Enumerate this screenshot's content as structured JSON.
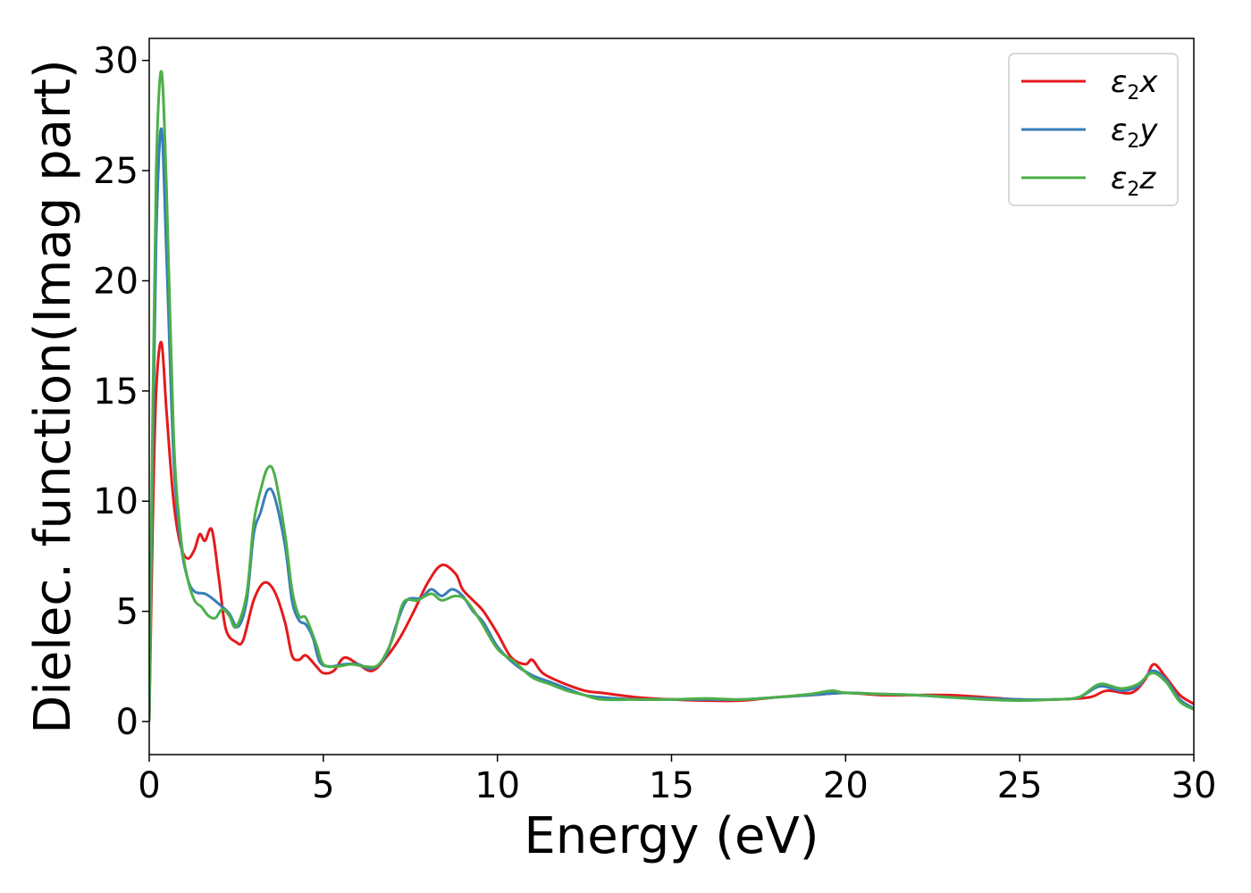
{
  "chart_data": {
    "type": "line",
    "xlabel": "Energy (eV)",
    "ylabel": "Dielec. function(Imag part)",
    "xlim": [
      0,
      30
    ],
    "ylim": [
      -1.5,
      31
    ],
    "xticks": [
      0,
      5,
      10,
      15,
      20,
      25,
      30
    ],
    "yticks": [
      0,
      5,
      10,
      15,
      20,
      25,
      30
    ],
    "xtick_labels": [
      "0",
      "5",
      "10",
      "15",
      "20",
      "25",
      "30"
    ],
    "ytick_labels": [
      "0",
      "5",
      "10",
      "15",
      "20",
      "25",
      "30"
    ],
    "grid": false,
    "legend_position": "top-right",
    "series": [
      {
        "name": "ε2x",
        "legend": {
          "base": "ε",
          "sub": "2",
          "var": "x"
        },
        "color": "#e41a1c",
        "points": [
          [
            0,
            0
          ],
          [
            0.1,
            9
          ],
          [
            0.2,
            15
          ],
          [
            0.35,
            17.2
          ],
          [
            0.5,
            14
          ],
          [
            0.7,
            10
          ],
          [
            0.9,
            8
          ],
          [
            1.1,
            7.4
          ],
          [
            1.3,
            7.8
          ],
          [
            1.45,
            8.5
          ],
          [
            1.6,
            8.2
          ],
          [
            1.8,
            8.7
          ],
          [
            2.0,
            6.5
          ],
          [
            2.2,
            4.2
          ],
          [
            2.5,
            3.6
          ],
          [
            2.7,
            3.7
          ],
          [
            3.0,
            5.5
          ],
          [
            3.3,
            6.3
          ],
          [
            3.6,
            5.9
          ],
          [
            3.9,
            4.5
          ],
          [
            4.1,
            3.0
          ],
          [
            4.3,
            2.8
          ],
          [
            4.5,
            3.0
          ],
          [
            4.8,
            2.5
          ],
          [
            5.0,
            2.2
          ],
          [
            5.3,
            2.3
          ],
          [
            5.6,
            2.9
          ],
          [
            6.0,
            2.6
          ],
          [
            6.4,
            2.3
          ],
          [
            6.8,
            2.9
          ],
          [
            7.2,
            3.8
          ],
          [
            7.6,
            5.0
          ],
          [
            8.0,
            6.3
          ],
          [
            8.4,
            7.1
          ],
          [
            8.8,
            6.7
          ],
          [
            9.0,
            6.0
          ],
          [
            9.3,
            5.5
          ],
          [
            9.6,
            5.0
          ],
          [
            10.0,
            4.0
          ],
          [
            10.4,
            2.9
          ],
          [
            10.8,
            2.6
          ],
          [
            11.0,
            2.8
          ],
          [
            11.3,
            2.2
          ],
          [
            11.8,
            1.8
          ],
          [
            12.5,
            1.4
          ],
          [
            13.0,
            1.3
          ],
          [
            14.0,
            1.1
          ],
          [
            15.0,
            1.0
          ],
          [
            16.0,
            0.95
          ],
          [
            17.0,
            0.95
          ],
          [
            18.0,
            1.1
          ],
          [
            19.0,
            1.2
          ],
          [
            20.0,
            1.3
          ],
          [
            21.0,
            1.2
          ],
          [
            22.0,
            1.2
          ],
          [
            23.0,
            1.2
          ],
          [
            24.0,
            1.1
          ],
          [
            25.0,
            1.0
          ],
          [
            26.0,
            1.0
          ],
          [
            27.0,
            1.1
          ],
          [
            27.5,
            1.4
          ],
          [
            28.2,
            1.3
          ],
          [
            28.6,
            1.9
          ],
          [
            28.85,
            2.6
          ],
          [
            29.2,
            2.0
          ],
          [
            29.6,
            1.2
          ],
          [
            30.0,
            0.8
          ]
        ]
      },
      {
        "name": "ε2y",
        "legend": {
          "base": "ε",
          "sub": "2",
          "var": "y"
        },
        "color": "#377eb8",
        "points": [
          [
            0,
            0
          ],
          [
            0.1,
            12
          ],
          [
            0.2,
            22
          ],
          [
            0.35,
            26.9
          ],
          [
            0.5,
            21
          ],
          [
            0.7,
            12
          ],
          [
            0.9,
            8.2
          ],
          [
            1.1,
            6.5
          ],
          [
            1.3,
            5.9
          ],
          [
            1.6,
            5.8
          ],
          [
            1.8,
            5.6
          ],
          [
            2.1,
            5.2
          ],
          [
            2.3,
            4.9
          ],
          [
            2.55,
            4.3
          ],
          [
            2.8,
            5.5
          ],
          [
            3.0,
            8.5
          ],
          [
            3.2,
            9.5
          ],
          [
            3.4,
            10.5
          ],
          [
            3.6,
            10.2
          ],
          [
            3.9,
            8.0
          ],
          [
            4.1,
            5.5
          ],
          [
            4.3,
            4.6
          ],
          [
            4.5,
            4.4
          ],
          [
            4.7,
            3.8
          ],
          [
            4.9,
            2.7
          ],
          [
            5.2,
            2.5
          ],
          [
            5.6,
            2.6
          ],
          [
            6.0,
            2.6
          ],
          [
            6.4,
            2.4
          ],
          [
            6.8,
            3.0
          ],
          [
            7.1,
            4.4
          ],
          [
            7.4,
            5.5
          ],
          [
            7.8,
            5.6
          ],
          [
            8.1,
            6.0
          ],
          [
            8.4,
            5.7
          ],
          [
            8.7,
            6.0
          ],
          [
            9.0,
            5.7
          ],
          [
            9.3,
            5.0
          ],
          [
            9.6,
            4.5
          ],
          [
            10.0,
            3.4
          ],
          [
            10.5,
            2.6
          ],
          [
            11.0,
            2.1
          ],
          [
            11.5,
            1.8
          ],
          [
            12.0,
            1.5
          ],
          [
            12.5,
            1.2
          ],
          [
            13.0,
            1.1
          ],
          [
            14.0,
            1.0
          ],
          [
            15.0,
            1.0
          ],
          [
            16.0,
            1.0
          ],
          [
            17.0,
            1.0
          ],
          [
            18.0,
            1.1
          ],
          [
            19.0,
            1.2
          ],
          [
            20.0,
            1.3
          ],
          [
            21.0,
            1.25
          ],
          [
            22.0,
            1.2
          ],
          [
            23.0,
            1.1
          ],
          [
            24.0,
            1.05
          ],
          [
            25.0,
            1.0
          ],
          [
            26.0,
            1.0
          ],
          [
            26.7,
            1.1
          ],
          [
            27.3,
            1.6
          ],
          [
            27.9,
            1.4
          ],
          [
            28.4,
            1.6
          ],
          [
            28.8,
            2.3
          ],
          [
            29.2,
            1.9
          ],
          [
            29.6,
            1.0
          ],
          [
            30.0,
            0.6
          ]
        ]
      },
      {
        "name": "ε2z",
        "legend": {
          "base": "ε",
          "sub": "2",
          "var": "z"
        },
        "color": "#4daf4a",
        "points": [
          [
            0,
            0
          ],
          [
            0.1,
            14
          ],
          [
            0.2,
            25
          ],
          [
            0.35,
            29.5
          ],
          [
            0.5,
            24
          ],
          [
            0.7,
            13
          ],
          [
            0.9,
            8.5
          ],
          [
            1.1,
            6.5
          ],
          [
            1.3,
            5.5
          ],
          [
            1.5,
            5.2
          ],
          [
            1.7,
            4.8
          ],
          [
            1.9,
            4.7
          ],
          [
            2.1,
            5.1
          ],
          [
            2.3,
            4.8
          ],
          [
            2.5,
            4.3
          ],
          [
            2.8,
            5.8
          ],
          [
            3.0,
            9.0
          ],
          [
            3.2,
            10.5
          ],
          [
            3.4,
            11.5
          ],
          [
            3.6,
            11.2
          ],
          [
            3.9,
            8.5
          ],
          [
            4.1,
            6.0
          ],
          [
            4.3,
            4.8
          ],
          [
            4.5,
            4.7
          ],
          [
            4.8,
            3.5
          ],
          [
            5.0,
            2.6
          ],
          [
            5.4,
            2.5
          ],
          [
            5.8,
            2.6
          ],
          [
            6.2,
            2.5
          ],
          [
            6.6,
            2.6
          ],
          [
            7.0,
            3.8
          ],
          [
            7.3,
            5.4
          ],
          [
            7.7,
            5.5
          ],
          [
            8.1,
            5.8
          ],
          [
            8.4,
            5.5
          ],
          [
            8.8,
            5.7
          ],
          [
            9.1,
            5.5
          ],
          [
            9.5,
            4.6
          ],
          [
            10.0,
            3.3
          ],
          [
            10.5,
            2.7
          ],
          [
            11.0,
            2.0
          ],
          [
            11.5,
            1.7
          ],
          [
            12.0,
            1.4
          ],
          [
            12.5,
            1.2
          ],
          [
            13.0,
            1.0
          ],
          [
            14.0,
            1.0
          ],
          [
            15.0,
            1.0
          ],
          [
            16.0,
            1.05
          ],
          [
            17.0,
            1.0
          ],
          [
            18.0,
            1.1
          ],
          [
            19.0,
            1.25
          ],
          [
            19.6,
            1.4
          ],
          [
            20.0,
            1.3
          ],
          [
            21.0,
            1.25
          ],
          [
            22.0,
            1.2
          ],
          [
            23.0,
            1.1
          ],
          [
            24.0,
            1.0
          ],
          [
            25.0,
            0.95
          ],
          [
            26.0,
            1.0
          ],
          [
            26.7,
            1.1
          ],
          [
            27.3,
            1.7
          ],
          [
            27.9,
            1.5
          ],
          [
            28.4,
            1.7
          ],
          [
            28.8,
            2.2
          ],
          [
            29.2,
            1.8
          ],
          [
            29.6,
            0.9
          ],
          [
            30.0,
            0.55
          ]
        ]
      }
    ]
  }
}
